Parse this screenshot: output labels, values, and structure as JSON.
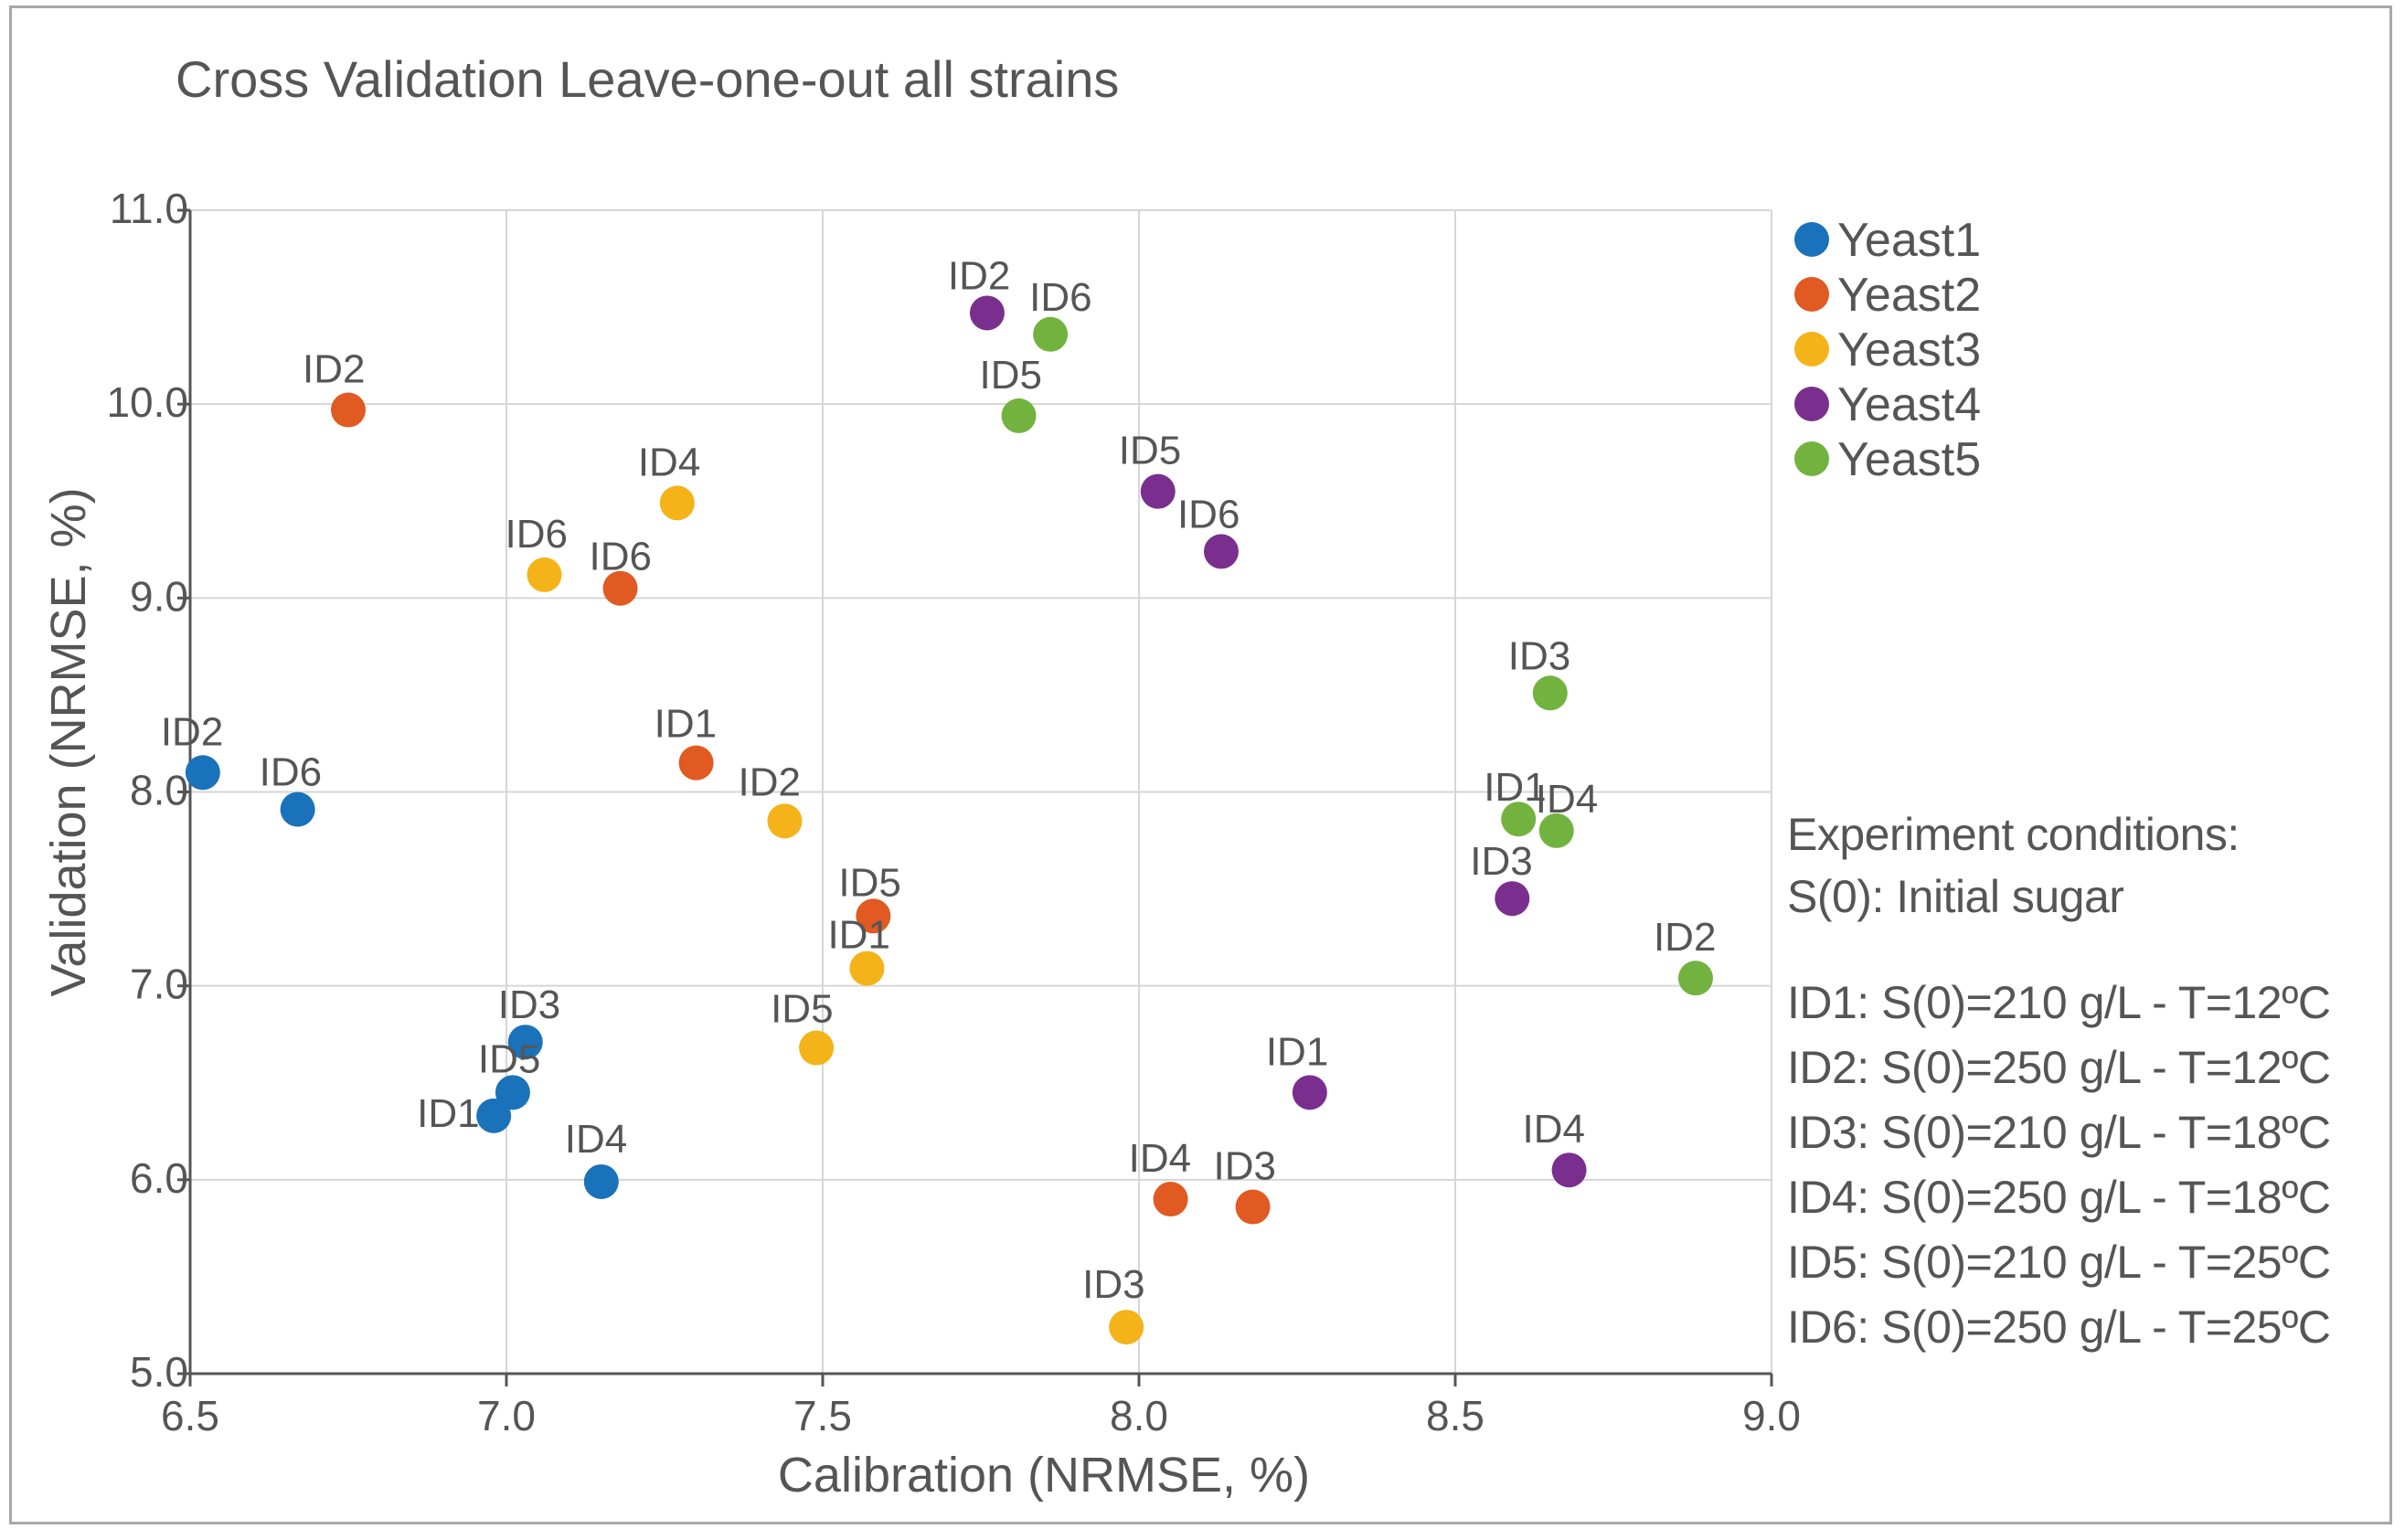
{
  "chart_data": {
    "type": "scatter",
    "title": "Cross Validation Leave-one-out all strains",
    "xlabel": "Calibration (NRMSE, %)",
    "ylabel": "Validation (NRMSE, %)",
    "xlim": [
      6.5,
      9.0
    ],
    "ylim": [
      5.0,
      11.0
    ],
    "xticks": [
      "6.5",
      "7.0",
      "7.5",
      "8.0",
      "8.5",
      "9.0"
    ],
    "yticks": [
      "5.0",
      "6.0",
      "7.0",
      "8.0",
      "9.0",
      "10.0",
      "11.0"
    ],
    "grid": true,
    "legend_position": "top-right",
    "series": [
      {
        "name": "Yeast1",
        "color": "#1a72ba",
        "points": [
          {
            "label": "ID2",
            "x": 6.52,
            "y": 8.1
          },
          {
            "label": "ID6",
            "x": 6.67,
            "y": 7.91
          },
          {
            "label": "ID3",
            "x": 7.03,
            "y": 6.71
          },
          {
            "label": "ID5",
            "x": 7.01,
            "y": 6.45
          },
          {
            "label": "ID1",
            "x": 6.98,
            "y": 6.33
          },
          {
            "label": "ID4",
            "x": 7.15,
            "y": 5.99
          }
        ]
      },
      {
        "name": "Yeast2",
        "color": "#e05a22",
        "points": [
          {
            "label": "ID2",
            "x": 6.75,
            "y": 9.97
          },
          {
            "label": "ID6",
            "x": 7.18,
            "y": 9.05
          },
          {
            "label": "ID1",
            "x": 7.3,
            "y": 8.15
          },
          {
            "label": "ID5",
            "x": 7.58,
            "y": 7.36
          },
          {
            "label": "ID4",
            "x": 8.05,
            "y": 5.9
          },
          {
            "label": "ID3",
            "x": 8.18,
            "y": 5.86
          }
        ]
      },
      {
        "name": "Yeast3",
        "color": "#f5b31a",
        "points": [
          {
            "label": "ID4",
            "x": 7.27,
            "y": 9.49
          },
          {
            "label": "ID6",
            "x": 7.06,
            "y": 9.12
          },
          {
            "label": "ID2",
            "x": 7.44,
            "y": 7.85
          },
          {
            "label": "ID1",
            "x": 7.57,
            "y": 7.09
          },
          {
            "label": "ID5",
            "x": 7.49,
            "y": 6.68
          },
          {
            "label": "ID3",
            "x": 7.98,
            "y": 5.24
          }
        ]
      },
      {
        "name": "Yeast4",
        "color": "#7a2f8e",
        "points": [
          {
            "label": "ID2",
            "x": 7.76,
            "y": 10.47
          },
          {
            "label": "ID5",
            "x": 8.03,
            "y": 9.55
          },
          {
            "label": "ID6",
            "x": 8.13,
            "y": 9.24
          },
          {
            "label": "ID3",
            "x": 8.59,
            "y": 7.45
          },
          {
            "label": "ID1",
            "x": 8.27,
            "y": 6.45
          },
          {
            "label": "ID4",
            "x": 8.68,
            "y": 6.05
          }
        ]
      },
      {
        "name": "Yeast5",
        "color": "#72b33f",
        "points": [
          {
            "label": "ID6",
            "x": 7.86,
            "y": 10.36
          },
          {
            "label": "ID5",
            "x": 7.81,
            "y": 9.94
          },
          {
            "label": "ID3",
            "x": 8.65,
            "y": 8.51
          },
          {
            "label": "ID1",
            "x": 8.6,
            "y": 7.86
          },
          {
            "label": "ID4",
            "x": 8.66,
            "y": 7.8
          },
          {
            "label": "ID2",
            "x": 8.88,
            "y": 7.04
          }
        ]
      }
    ]
  },
  "info_panel": {
    "heading": "Experiment conditions:",
    "subheading": "S(0): Initial sugar",
    "conditions": [
      "ID1: S(0)=210 g/L - T=12ºC",
      "ID2: S(0)=250 g/L - T=12ºC",
      "ID3: S(0)=210 g/L - T=18ºC",
      "ID4: S(0)=250 g/L - T=18ºC",
      "ID5: S(0)=210 g/L - T=25ºC",
      "ID6: S(0)=250 g/L - T=25ºC"
    ]
  }
}
